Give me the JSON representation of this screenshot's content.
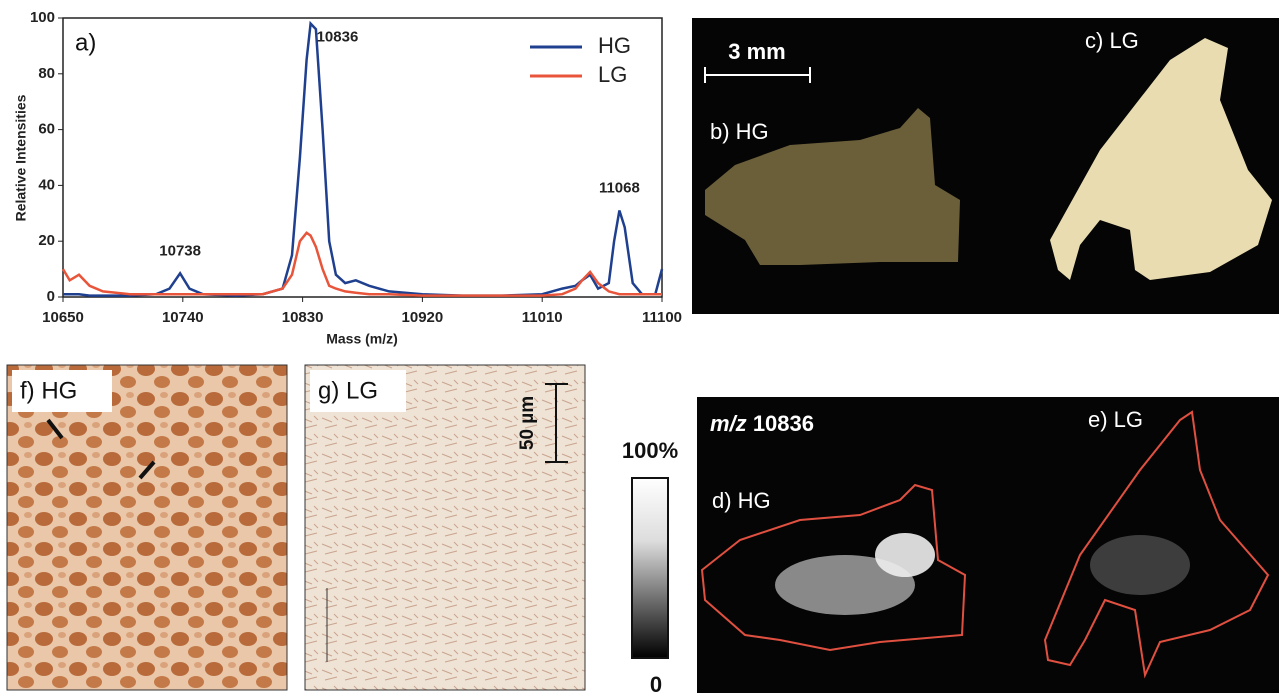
{
  "chart_data": {
    "type": "line",
    "panel_label": "a)",
    "x_label": "Mass (m/z)",
    "y_label": "Relative Intensities",
    "xlim": [
      10650,
      11100
    ],
    "xticks": [
      10650,
      10740,
      10830,
      10920,
      11010,
      11100
    ],
    "ylim": [
      0,
      100
    ],
    "yticks": [
      0,
      20,
      40,
      60,
      80,
      100
    ],
    "legend": "upper right",
    "x": [
      10650,
      10655,
      10662,
      10670,
      10680,
      10700,
      10720,
      10730,
      10738,
      10745,
      10755,
      10780,
      10800,
      10815,
      10822,
      10828,
      10833,
      10836,
      10840,
      10845,
      10850,
      10855,
      10862,
      10870,
      10880,
      10895,
      10920,
      10950,
      10980,
      11010,
      11025,
      11035,
      11040,
      11046,
      11052,
      11060,
      11064,
      11068,
      11072,
      11078,
      11085,
      11095,
      11100
    ],
    "series": [
      {
        "name": "HG",
        "color": "#1f3f8f",
        "values": [
          1,
          1,
          1,
          0.5,
          0.5,
          0.5,
          1,
          3,
          8.5,
          3,
          1,
          0.5,
          1,
          3,
          15,
          50,
          85,
          98,
          96,
          60,
          20,
          8,
          5,
          6,
          4,
          2,
          1,
          0.5,
          0.5,
          1,
          3,
          4,
          6,
          8,
          3,
          5,
          20,
          31,
          25,
          5,
          1,
          1,
          10
        ]
      },
      {
        "name": "LG",
        "color": "#e8553a",
        "values": [
          10,
          6,
          8,
          4,
          2,
          1,
          1,
          1,
          1,
          1,
          1,
          1,
          1,
          3,
          8,
          20,
          23,
          22,
          18,
          10,
          4,
          3,
          2,
          1.5,
          1,
          1,
          0.5,
          0.5,
          0.5,
          0.5,
          1,
          3,
          6,
          9,
          5,
          2,
          1.5,
          1,
          1,
          1,
          1,
          1,
          1
        ]
      }
    ],
    "peak_labels": [
      10738,
      10836,
      11068
    ]
  },
  "panels": {
    "scale_bar": "3 mm",
    "b": "b) HG",
    "c": "c) LG",
    "f": "f) HG",
    "g": "g) LG",
    "micro_scale": "50 µm",
    "colorbar_top": "100%",
    "colorbar_bottom": "0",
    "mz_prefix": "m/z",
    "mz_value": "10836",
    "d": "d) HG",
    "e": "e) LG"
  }
}
